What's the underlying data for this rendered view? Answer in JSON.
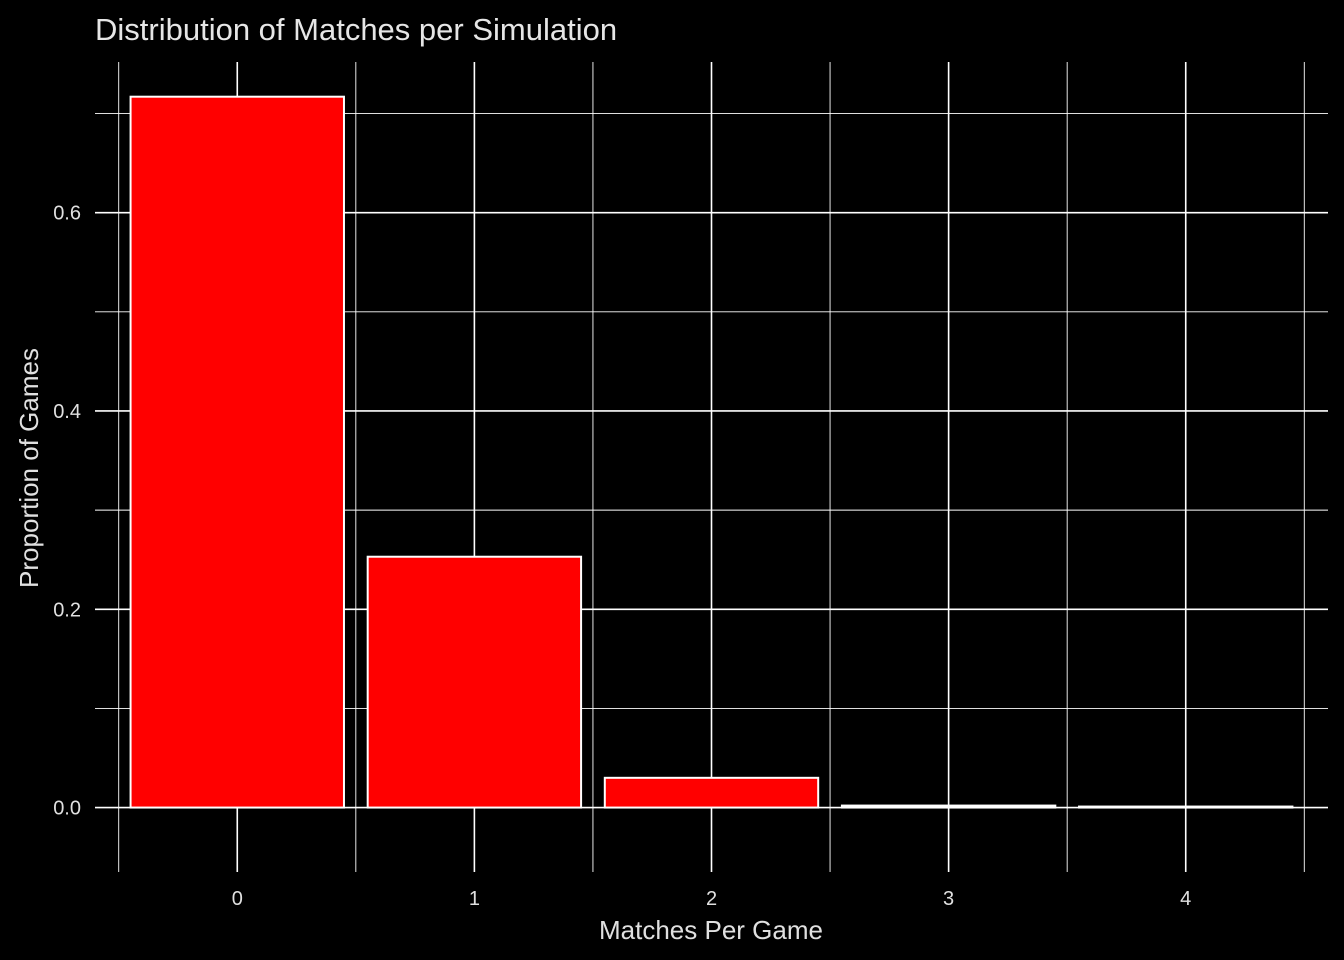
{
  "chart_data": {
    "type": "bar",
    "title": "Distribution of Matches per Simulation",
    "xlabel": "Matches Per Game",
    "ylabel": "Proportion of Games",
    "categories": [
      "0",
      "1",
      "2",
      "3",
      "4"
    ],
    "values": [
      0.717,
      0.253,
      0.03,
      0.002,
      0.001
    ],
    "ylim": [
      -0.065,
      0.752
    ],
    "yticks": [
      0.0,
      0.2,
      0.4,
      0.6
    ],
    "ytick_labels": [
      "0.0",
      "0.2",
      "0.4",
      "0.6"
    ],
    "grid": true,
    "legend": "none",
    "colors": {
      "background": "#000000",
      "bar_fill": "#ff0000",
      "bar_outline": "#ffffff",
      "grid": "#ffffff",
      "text": "#e0e0e0"
    }
  }
}
